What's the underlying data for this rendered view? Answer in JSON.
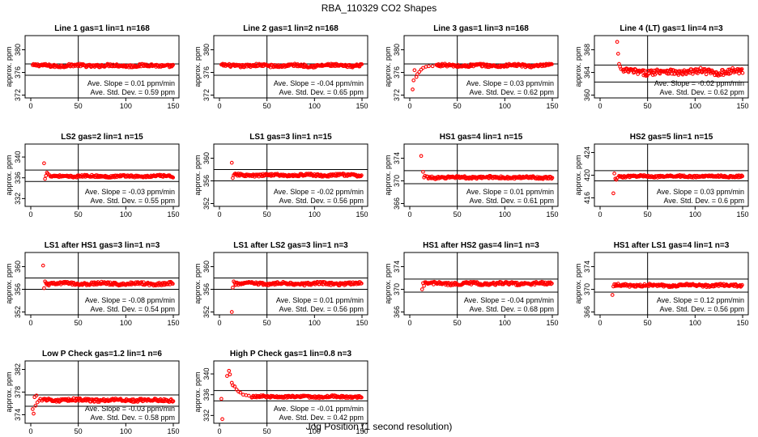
{
  "figure": {
    "title": "RBA_110329  CO2 Shapes",
    "xlabel": "Jog Position (1 second resolution)",
    "ylabel": "approx. ppm",
    "point_color": "#ff0000",
    "slope_prefix": "Ave. Slope = ",
    "slope_unit": " ppm/min",
    "std_prefix": "Ave. Std. Dev. = ",
    "std_unit": " ppm"
  },
  "chart_data": [
    {
      "type": "scatter",
      "title": "Line 1 gas=1 lin=1 n=168",
      "xlim": [
        0,
        150
      ],
      "xticks": [
        0,
        50,
        100,
        150
      ],
      "ylim": [
        371.5,
        382.5
      ],
      "yticks": [
        372,
        376,
        380
      ],
      "hlines": [
        377.5,
        375.5
      ],
      "vline": 50,
      "slope": "0.01",
      "std": "0.59",
      "x_start": 2,
      "base": 377.2,
      "noise": 0.25,
      "early": []
    },
    {
      "type": "scatter",
      "title": "Line 2 gas=1 lin=2 n=168",
      "xlim": [
        0,
        150
      ],
      "xticks": [
        0,
        50,
        100,
        150
      ],
      "ylim": [
        371.5,
        382.5
      ],
      "yticks": [
        372,
        376,
        380
      ],
      "hlines": [
        377.5,
        375.5
      ],
      "vline": 50,
      "slope": "-0.04",
      "std": "0.65",
      "x_start": 2,
      "base": 377.2,
      "noise": 0.25,
      "early": []
    },
    {
      "type": "scatter",
      "title": "Line 3 gas=1 lin=3 n=168",
      "xlim": [
        0,
        150
      ],
      "xticks": [
        0,
        50,
        100,
        150
      ],
      "ylim": [
        371.5,
        382.5
      ],
      "yticks": [
        372,
        376,
        380
      ],
      "hlines": [
        377.5,
        375.5
      ],
      "vline": 50,
      "slope": "0.03",
      "std": "0.62",
      "x_start": 28,
      "base": 377.2,
      "noise": 0.25,
      "early": [
        [
          3,
          373.0
        ],
        [
          4,
          374.6
        ],
        [
          5,
          376.4
        ],
        [
          7,
          375.2
        ],
        [
          8,
          375.7
        ],
        [
          10,
          376.1
        ],
        [
          12,
          376.5
        ],
        [
          14,
          376.8
        ],
        [
          17,
          377.0
        ],
        [
          20,
          377.1
        ],
        [
          24,
          377.1
        ]
      ]
    },
    {
      "type": "scatter",
      "title": "Line 4 (LT) gas=1 lin=4 n=3",
      "xlim": [
        0,
        150
      ],
      "xticks": [
        0,
        50,
        100,
        150
      ],
      "ylim": [
        359.5,
        370.5
      ],
      "yticks": [
        360,
        364,
        368
      ],
      "hlines": [
        365.3,
        362.3
      ],
      "vline": 50,
      "slope": "-0.02",
      "std": "0.62",
      "x_start": 24,
      "base": 364.1,
      "noise": 0.5,
      "early": [
        [
          18,
          369.4
        ],
        [
          19,
          367.3
        ],
        [
          20,
          365.5
        ],
        [
          21,
          365.0
        ],
        [
          22,
          364.6
        ]
      ]
    },
    {
      "type": "scatter",
      "title": "LS2 gas=2 lin=1 n=15",
      "xlim": [
        0,
        150
      ],
      "xticks": [
        0,
        50,
        100,
        150
      ],
      "ylim": [
        330.5,
        342.5
      ],
      "yticks": [
        332,
        336,
        340
      ],
      "hlines": [
        337.5,
        335.3
      ],
      "vline": 50,
      "slope": "-0.03",
      "std": "0.55",
      "x_start": 20,
      "base": 336.3,
      "noise": 0.2,
      "early": [
        [
          14,
          338.8
        ],
        [
          15,
          335.8
        ],
        [
          16,
          336.4
        ],
        [
          17,
          337.0
        ],
        [
          18,
          336.8
        ]
      ]
    },
    {
      "type": "scatter",
      "title": "LS1 gas=3 lin=1 n=15",
      "xlim": [
        0,
        150
      ],
      "xticks": [
        0,
        50,
        100,
        150
      ],
      "ylim": [
        351.5,
        362.5
      ],
      "yticks": [
        352,
        356,
        360
      ],
      "hlines": [
        358.0,
        356.0
      ],
      "vline": 50,
      "slope": "-0.02",
      "std": "0.56",
      "x_start": 16,
      "base": 357.0,
      "noise": 0.22,
      "early": [
        [
          13,
          359.2
        ],
        [
          14,
          356.5
        ],
        [
          15,
          357.0
        ]
      ]
    },
    {
      "type": "scatter",
      "title": "HS1 gas=4 lin=1 n=15",
      "xlim": [
        0,
        150
      ],
      "xticks": [
        0,
        50,
        100,
        150
      ],
      "ylim": [
        365.5,
        376.5
      ],
      "yticks": [
        366,
        370,
        374
      ],
      "hlines": [
        371.8,
        369.5
      ],
      "vline": 50,
      "slope": "0.01",
      "std": "0.61",
      "x_start": 18,
      "base": 370.6,
      "noise": 0.22,
      "early": [
        [
          12,
          374.4
        ],
        [
          14,
          371.6
        ],
        [
          15,
          370.6
        ],
        [
          16,
          370.9
        ]
      ]
    },
    {
      "type": "scatter",
      "title": "HS2 gas=5 lin=1 n=15",
      "xlim": [
        0,
        150
      ],
      "xticks": [
        0,
        50,
        100,
        150
      ],
      "ylim": [
        414.5,
        425.5
      ],
      "yticks": [
        416,
        420,
        424
      ],
      "hlines": [
        420.8,
        419.0
      ],
      "vline": 50,
      "slope": "0.03",
      "std": "0.6",
      "x_start": 20,
      "base": 419.8,
      "noise": 0.18,
      "early": [
        [
          14,
          416.8
        ],
        [
          15,
          420.3
        ],
        [
          16,
          419.4
        ],
        [
          17,
          419.2
        ],
        [
          18,
          419.5
        ]
      ]
    },
    {
      "type": "scatter",
      "title": "LS1 after HS1 gas=3 lin=1 n=3",
      "xlim": [
        0,
        150
      ],
      "xticks": [
        0,
        50,
        100,
        150
      ],
      "ylim": [
        351.5,
        362.5
      ],
      "yticks": [
        352,
        356,
        360
      ],
      "hlines": [
        358.0,
        356.0
      ],
      "vline": 50,
      "slope": "-0.08",
      "std": "0.54",
      "x_start": 16,
      "base": 357.0,
      "noise": 0.25,
      "early": [
        [
          13,
          360.2
        ],
        [
          14,
          356.2
        ],
        [
          15,
          357.4
        ]
      ]
    },
    {
      "type": "scatter",
      "title": "LS1 after LS2 gas=3 lin=1 n=3",
      "xlim": [
        0,
        150
      ],
      "xticks": [
        0,
        50,
        100,
        150
      ],
      "ylim": [
        351.5,
        362.5
      ],
      "yticks": [
        352,
        356,
        360
      ],
      "hlines": [
        358.0,
        356.0
      ],
      "vline": 50,
      "slope": "0.01",
      "std": "0.56",
      "x_start": 16,
      "base": 357.0,
      "noise": 0.25,
      "early": [
        [
          13,
          352.0
        ],
        [
          14,
          356.3
        ],
        [
          15,
          357.4
        ]
      ]
    },
    {
      "type": "scatter",
      "title": "HS1 after HS2 gas=4 lin=1 n=3",
      "xlim": [
        0,
        150
      ],
      "xticks": [
        0,
        50,
        100,
        150
      ],
      "ylim": [
        365.5,
        376.5
      ],
      "yticks": [
        366,
        370,
        374
      ],
      "hlines": [
        371.8,
        369.5
      ],
      "vline": 50,
      "slope": "-0.04",
      "std": "0.68",
      "x_start": 16,
      "base": 371.0,
      "noise": 0.25,
      "early": [
        [
          13,
          370.0
        ],
        [
          14,
          371.1
        ],
        [
          15,
          370.6
        ]
      ]
    },
    {
      "type": "scatter",
      "title": "HS1 after LS1 gas=4 lin=1 n=3",
      "xlim": [
        0,
        150
      ],
      "xticks": [
        0,
        50,
        100,
        150
      ],
      "ylim": [
        365.5,
        376.5
      ],
      "yticks": [
        366,
        370,
        374
      ],
      "hlines": [
        371.8,
        369.5
      ],
      "vline": 50,
      "slope": "0.12",
      "std": "0.56",
      "x_start": 16,
      "base": 370.7,
      "noise": 0.22,
      "early": [
        [
          13,
          369.0
        ],
        [
          14,
          370.5
        ],
        [
          15,
          370.9
        ]
      ]
    },
    {
      "type": "scatter",
      "title": "Low P Check gas=1.2 lin=1 n=6",
      "xlim": [
        0,
        150
      ],
      "xticks": [
        0,
        50,
        100,
        150
      ],
      "ylim": [
        372.5,
        383.5
      ],
      "yticks": [
        374,
        378,
        382
      ],
      "hlines": [
        377.5,
        375.5
      ],
      "vline": 50,
      "slope": "-0.03",
      "std": "0.58",
      "x_start": 12,
      "base": 376.6,
      "noise": 0.25,
      "early": [
        [
          2,
          375.0
        ],
        [
          3,
          374.2
        ],
        [
          4,
          377.1
        ],
        [
          5,
          375.6
        ],
        [
          6,
          377.4
        ],
        [
          7,
          376.2
        ],
        [
          9,
          376.5
        ],
        [
          10,
          376.8
        ]
      ]
    },
    {
      "type": "scatter",
      "title": "High P Check gas=1 lin=0.8 n=3",
      "xlim": [
        0,
        150
      ],
      "xticks": [
        0,
        50,
        100,
        150
      ],
      "ylim": [
        330.5,
        342.5
      ],
      "yticks": [
        332,
        336,
        340
      ],
      "hlines": [
        336.8,
        334.8
      ],
      "vline": 50,
      "slope": "-0.01",
      "std": "0.42",
      "x_start": 34,
      "base": 335.6,
      "noise": 0.2,
      "early": [
        [
          2,
          335.2
        ],
        [
          3,
          331.3
        ],
        [
          8,
          339.6
        ],
        [
          10,
          340.6
        ],
        [
          11,
          339.9
        ],
        [
          13,
          338.3
        ],
        [
          14,
          337.8
        ],
        [
          16,
          337.6
        ],
        [
          18,
          337.0
        ],
        [
          20,
          336.6
        ],
        [
          22,
          336.4
        ],
        [
          25,
          336.0
        ],
        [
          28,
          335.9
        ],
        [
          31,
          335.8
        ]
      ]
    }
  ]
}
